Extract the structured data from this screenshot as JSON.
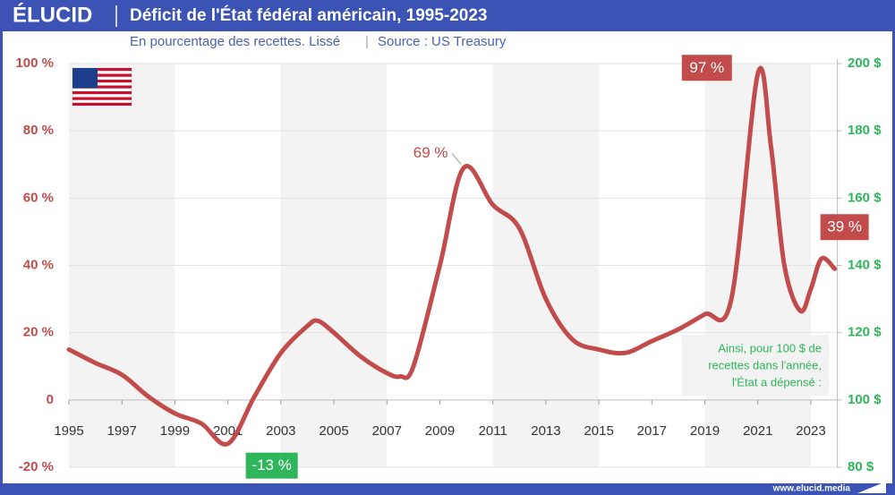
{
  "brand": "ÉLUCID",
  "footer": "www.elucid.media",
  "chart_data": {
    "type": "line",
    "title": "Déficit de l'État fédéral américain, 1995-2023",
    "subtitle": "En pourcentage des recettes. Lissé",
    "source": "Source : US Treasury",
    "x": [
      1995,
      1996,
      1997,
      1998,
      1999,
      2000,
      2001,
      2002,
      2003,
      2004,
      2004.4,
      2005,
      2006,
      2007,
      2007.5,
      2008,
      2009,
      2009.9,
      2011,
      2012,
      2013,
      2014,
      2015,
      2016,
      2017,
      2018,
      2019,
      2020,
      2021,
      2021.5,
      2022,
      2022.6,
      2023,
      2023.4,
      2023.9
    ],
    "series": [
      {
        "name": "Déficit",
        "color": "#c24b4b",
        "values": [
          15,
          11,
          7.5,
          1,
          -4,
          -7,
          -13,
          1,
          14,
          22,
          23.5,
          20,
          13,
          8,
          7,
          10,
          40,
          69,
          58,
          51,
          30,
          18,
          15,
          14,
          17.5,
          21,
          25.5,
          30,
          97,
          75,
          40,
          26.5,
          33,
          42,
          39
        ],
        "value_labels": [
          null,
          null,
          null,
          null,
          null,
          null,
          "-13 %",
          null,
          null,
          null,
          null,
          null,
          null,
          null,
          null,
          null,
          null,
          "69 %",
          null,
          null,
          null,
          null,
          null,
          null,
          null,
          null,
          null,
          null,
          "97 %",
          null,
          null,
          null,
          null,
          null,
          "39 %"
        ]
      }
    ],
    "xlim": [
      1995,
      2024
    ],
    "xticks": [
      1995,
      1997,
      1999,
      2001,
      2003,
      2005,
      2007,
      2009,
      2011,
      2013,
      2015,
      2017,
      2019,
      2021,
      2023
    ],
    "ylim": [
      -20,
      100
    ],
    "yticks": [
      {
        "value": -20,
        "label": "-20 %"
      },
      0,
      {
        "value": 20,
        "label": "20 %"
      },
      {
        "value": 40,
        "label": "40 %"
      },
      {
        "value": 60,
        "label": "60 %"
      },
      {
        "value": 80,
        "label": "80 %"
      },
      {
        "value": 100,
        "label": "100 %"
      }
    ],
    "y2lim": [
      80,
      200
    ],
    "y2ticks": [
      {
        "value": 80,
        "label": "80 $"
      },
      {
        "value": 100,
        "label": "100 $"
      },
      {
        "value": 120,
        "label": "120 $"
      },
      {
        "value": 140,
        "label": "140 $"
      },
      {
        "value": 160,
        "label": "160 $"
      },
      {
        "value": 180,
        "label": "180 $"
      },
      {
        "value": 200,
        "label": "200 $"
      }
    ],
    "grid": true,
    "note": [
      "Ainsi, pour 100 $ de",
      "recettes dans l'année,",
      "l'État a dépensé :"
    ]
  }
}
